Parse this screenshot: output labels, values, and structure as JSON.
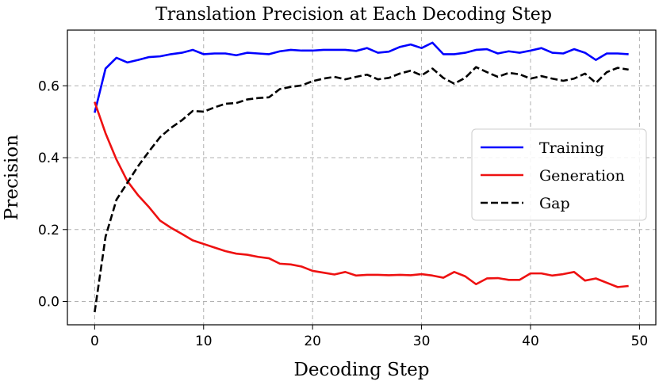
{
  "chart_data": {
    "type": "line",
    "title": "Translation Precision at Each Decoding Step",
    "xlabel": "Decoding Step",
    "ylabel": "Precision",
    "xlim": [
      -2.5,
      51.5
    ],
    "ylim": [
      -0.065,
      0.755
    ],
    "xticks": [
      0,
      10,
      20,
      30,
      40,
      50
    ],
    "yticks": [
      0.0,
      0.2,
      0.4,
      0.6
    ],
    "xtick_labels": [
      "0",
      "10",
      "20",
      "30",
      "40",
      "50"
    ],
    "ytick_labels": [
      "0.0",
      "0.2",
      "0.4",
      "0.6"
    ],
    "grid": true,
    "legend_position": "center-right",
    "x": [
      0,
      1,
      2,
      3,
      4,
      5,
      6,
      7,
      8,
      9,
      10,
      11,
      12,
      13,
      14,
      15,
      16,
      17,
      18,
      19,
      20,
      21,
      22,
      23,
      24,
      25,
      26,
      27,
      28,
      29,
      30,
      31,
      32,
      33,
      34,
      35,
      36,
      37,
      38,
      39,
      40,
      41,
      42,
      43,
      44,
      45,
      46,
      47,
      48,
      49
    ],
    "series": [
      {
        "name": "Training",
        "color": "#0000ff",
        "style": "solid",
        "values": [
          0.525,
          0.648,
          0.678,
          0.665,
          0.672,
          0.68,
          0.682,
          0.688,
          0.692,
          0.7,
          0.688,
          0.69,
          0.69,
          0.685,
          0.692,
          0.69,
          0.688,
          0.696,
          0.7,
          0.698,
          0.698,
          0.7,
          0.7,
          0.7,
          0.697,
          0.705,
          0.692,
          0.695,
          0.708,
          0.715,
          0.705,
          0.72,
          0.688,
          0.688,
          0.692,
          0.7,
          0.702,
          0.69,
          0.696,
          0.692,
          0.698,
          0.705,
          0.692,
          0.69,
          0.702,
          0.692,
          0.672,
          0.69,
          0.69,
          0.688
        ]
      },
      {
        "name": "Generation",
        "color": "#ee1111",
        "style": "solid",
        "values": [
          0.555,
          0.468,
          0.395,
          0.335,
          0.295,
          0.262,
          0.225,
          0.205,
          0.188,
          0.17,
          0.16,
          0.15,
          0.14,
          0.133,
          0.13,
          0.124,
          0.12,
          0.105,
          0.103,
          0.097,
          0.085,
          0.08,
          0.075,
          0.082,
          0.072,
          0.074,
          0.074,
          0.073,
          0.074,
          0.073,
          0.076,
          0.072,
          0.066,
          0.082,
          0.07,
          0.048,
          0.064,
          0.065,
          0.06,
          0.06,
          0.078,
          0.078,
          0.072,
          0.076,
          0.082,
          0.058,
          0.064,
          0.052,
          0.04,
          0.043
        ]
      },
      {
        "name": "Gap",
        "color": "#000000",
        "style": "dashed",
        "values": [
          -0.03,
          0.18,
          0.283,
          0.33,
          0.377,
          0.418,
          0.457,
          0.483,
          0.504,
          0.53,
          0.528,
          0.54,
          0.55,
          0.552,
          0.562,
          0.566,
          0.568,
          0.591,
          0.597,
          0.601,
          0.613,
          0.62,
          0.625,
          0.618,
          0.625,
          0.631,
          0.618,
          0.622,
          0.634,
          0.642,
          0.629,
          0.648,
          0.622,
          0.606,
          0.622,
          0.652,
          0.638,
          0.625,
          0.636,
          0.632,
          0.62,
          0.627,
          0.62,
          0.614,
          0.62,
          0.634,
          0.608,
          0.638,
          0.65,
          0.645
        ]
      }
    ]
  }
}
